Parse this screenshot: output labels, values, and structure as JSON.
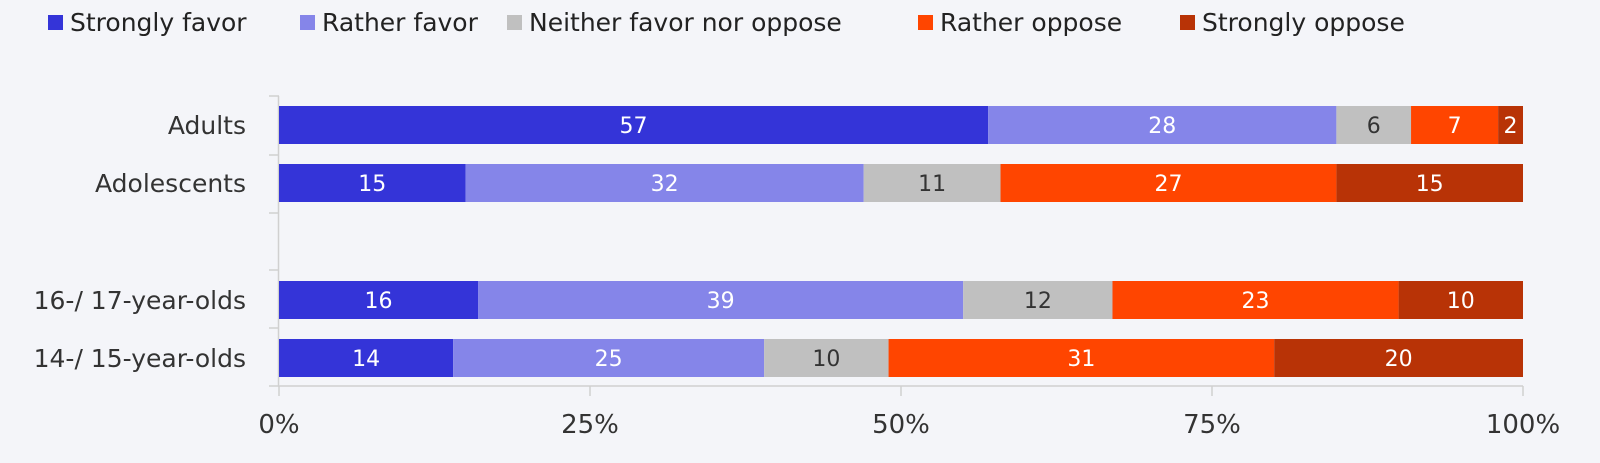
{
  "chart_data": {
    "type": "bar",
    "orientation": "horizontal",
    "stacked": true,
    "title": "",
    "xlabel": "",
    "ylabel": "",
    "xlim": [
      0,
      100
    ],
    "x_ticks": [
      "0%",
      "25%",
      "50%",
      "75%",
      "100%"
    ],
    "legend_position": "top",
    "categories": [
      "Adults",
      "Adolescents",
      "16-/ 17-year-olds",
      "14-/ 15-year-olds"
    ],
    "series": [
      {
        "name": "Strongly favor",
        "color": "#3434d8",
        "label_color": "#ffffff",
        "values": [
          57,
          15,
          16,
          14
        ]
      },
      {
        "name": "Rather favor",
        "color": "#8585e9",
        "label_color": "#ffffff",
        "values": [
          28,
          32,
          39,
          25
        ]
      },
      {
        "name": "Neither favor nor oppose",
        "color": "#c0c0c0",
        "label_color": "#333333",
        "values": [
          6,
          11,
          12,
          10
        ]
      },
      {
        "name": "Rather oppose",
        "color": "#ff4500",
        "label_color": "#ffffff",
        "values": [
          7,
          27,
          23,
          31
        ]
      },
      {
        "name": "Strongly oppose",
        "color": "#b83306",
        "label_color": "#ffffff",
        "values": [
          2,
          15,
          10,
          20
        ]
      }
    ]
  }
}
